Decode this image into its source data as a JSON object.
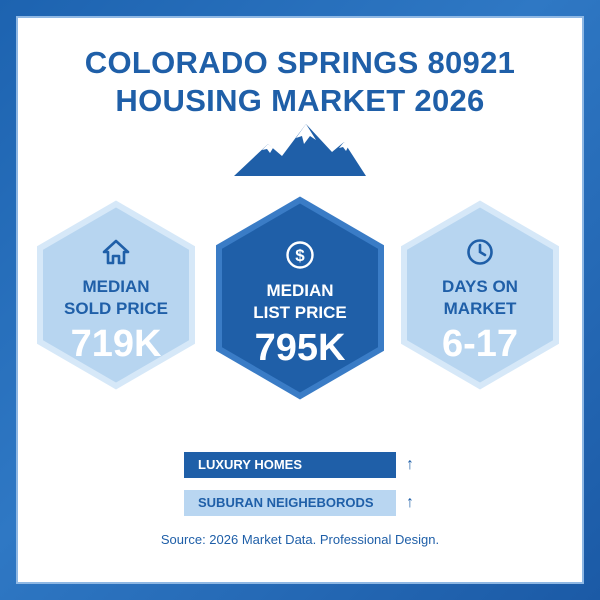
{
  "title": {
    "line1": "COLORADO SPRINGS 80921",
    "line2": "HOUSING MARKET 2026"
  },
  "logo": {
    "icon": "mountain-icon"
  },
  "stats": [
    {
      "icon": "house-icon",
      "label_line1": "MEDIAN",
      "label_line2": "SOLD PRICE",
      "value": "719K"
    },
    {
      "icon": "dollar-coin-icon",
      "label_line1": "MEDIAN",
      "label_line2": "LIST PRICE",
      "value": "795K"
    },
    {
      "icon": "clock-icon",
      "label_line1": "DAYS ON",
      "label_line2": "MARKET",
      "value": "6-17"
    }
  ],
  "segments": [
    {
      "label": "LUXURY HOMES",
      "trend": "↑",
      "trend_icon": "arrow-up-icon"
    },
    {
      "label": "SUBURAN NEIGHEBORODS",
      "trend": "↑",
      "trend_icon": "arrow-up-icon"
    }
  ],
  "source": "Source: 2026 Market Data. Professional Design.",
  "colors": {
    "brand_dark": "#1f5fa8",
    "brand_light": "#b9d6f1",
    "frame": "#2f78c4"
  }
}
